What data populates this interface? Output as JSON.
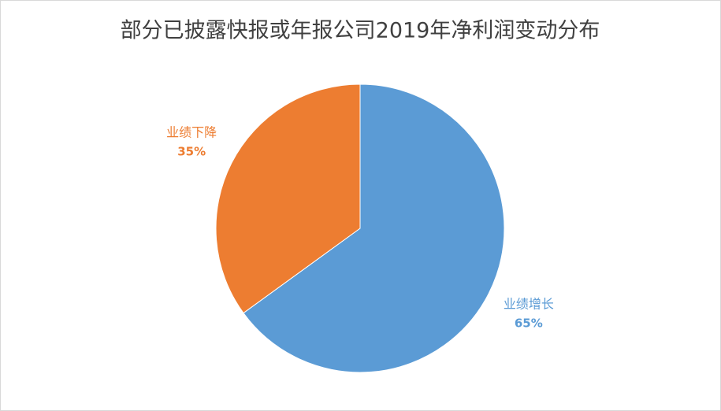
{
  "chart_data": {
    "type": "pie",
    "title": "部分已披露快报或年报公司2019年净利润变动分布",
    "categories": [
      "业绩增长",
      "业绩下降"
    ],
    "values": [
      65,
      35
    ],
    "value_labels": [
      "65%",
      "35%"
    ],
    "colors": [
      "#5b9bd5",
      "#ed7d31"
    ]
  }
}
